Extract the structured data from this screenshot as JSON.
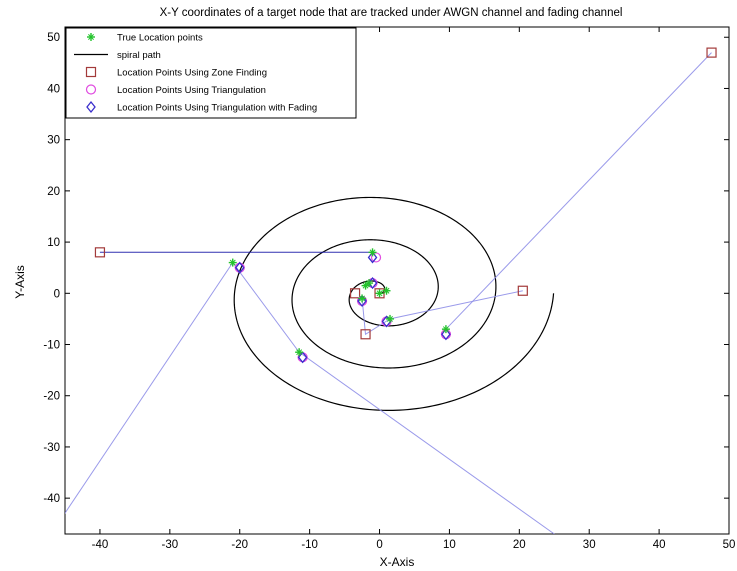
{
  "chart_data": {
    "type": "scatter",
    "title": "X-Y coordinates of a target node that are tracked under AWGN channel and fading channel",
    "xlabel": "X-Axis",
    "ylabel": "Y-Axis",
    "xlim": [
      -45,
      50
    ],
    "ylim": [
      -47,
      52
    ],
    "x_ticks": [
      -40,
      -30,
      -20,
      -10,
      0,
      10,
      20,
      30,
      40,
      50
    ],
    "y_ticks": [
      -40,
      -30,
      -20,
      -10,
      0,
      10,
      20,
      30,
      40,
      50
    ],
    "x_tick_labels": [
      "-40",
      "-30",
      "-20",
      "-10",
      "0",
      "10",
      "20",
      "30",
      "40",
      "50"
    ],
    "y_tick_labels": [
      "-40",
      "-30",
      "-20",
      "-10",
      "0",
      "10",
      "20",
      "30",
      "40",
      "50"
    ],
    "grid": false,
    "legend_position": "top-left",
    "spiral": {
      "name": "spiral path",
      "center": [
        0,
        0
      ],
      "growth_per_turn": 8.3,
      "turns": 3.0,
      "end_point": [
        25,
        0
      ],
      "color": "#000000"
    },
    "series": [
      {
        "name": "True Location points",
        "marker": "plus",
        "color": "#22c32a",
        "points": [
          [
            0,
            0
          ],
          [
            -1,
            8
          ],
          [
            -21,
            6
          ],
          [
            -11.5,
            -11.5
          ],
          [
            9.5,
            -7
          ],
          [
            1.5,
            -5
          ],
          [
            -2.5,
            -1
          ],
          [
            -1.5,
            2
          ],
          [
            -2,
            1.5
          ],
          [
            1,
            0.5
          ]
        ]
      },
      {
        "name": "Location Points Using Zone Finding",
        "marker": "square",
        "color": "#a33a3a",
        "points": [
          [
            47.5,
            47
          ],
          [
            -40,
            8
          ],
          [
            20.5,
            0.5
          ],
          [
            -3.5,
            0
          ],
          [
            -2,
            -8
          ],
          [
            0,
            0
          ]
        ]
      },
      {
        "name": "Location Points Using Triangulation",
        "marker": "circle",
        "color": "#e04ae0",
        "points": [
          [
            -0.5,
            7
          ],
          [
            -20,
            5
          ],
          [
            -11,
            -12.5
          ],
          [
            9.5,
            -8
          ],
          [
            1,
            -5.5
          ],
          [
            -2.5,
            -1.5
          ],
          [
            -1,
            2
          ]
        ]
      },
      {
        "name": "Location Points Using Triangulation with Fading",
        "marker": "diamond",
        "color": "#3a2ecc",
        "points": [
          [
            -1,
            7
          ],
          [
            -20,
            5
          ],
          [
            -11,
            -12.5
          ],
          [
            9.5,
            -8
          ],
          [
            1,
            -5.5
          ],
          [
            -2.5,
            -1.5
          ],
          [
            -1,
            2
          ]
        ]
      }
    ],
    "paths": [
      {
        "color": "#1a1aa8",
        "opacity": 0.9,
        "points": [
          [
            -40,
            8
          ],
          [
            -1,
            8
          ]
        ]
      },
      {
        "color": "#8f8fe8",
        "opacity": 0.9,
        "points": [
          [
            -47,
            -47
          ],
          [
            -21,
            6
          ]
        ]
      },
      {
        "color": "#8f8fe8",
        "opacity": 0.9,
        "points": [
          [
            -21,
            6
          ],
          [
            -11.5,
            -11.5
          ],
          [
            25,
            -47
          ]
        ]
      },
      {
        "color": "#8f8fe8",
        "opacity": 0.9,
        "points": [
          [
            47.5,
            47
          ],
          [
            9.5,
            -7
          ]
        ]
      },
      {
        "color": "#8f8fe8",
        "opacity": 0.9,
        "points": [
          [
            20.5,
            0.5
          ],
          [
            1.5,
            -5
          ],
          [
            -2,
            -8
          ],
          [
            -2.5,
            -1
          ]
        ]
      }
    ]
  }
}
